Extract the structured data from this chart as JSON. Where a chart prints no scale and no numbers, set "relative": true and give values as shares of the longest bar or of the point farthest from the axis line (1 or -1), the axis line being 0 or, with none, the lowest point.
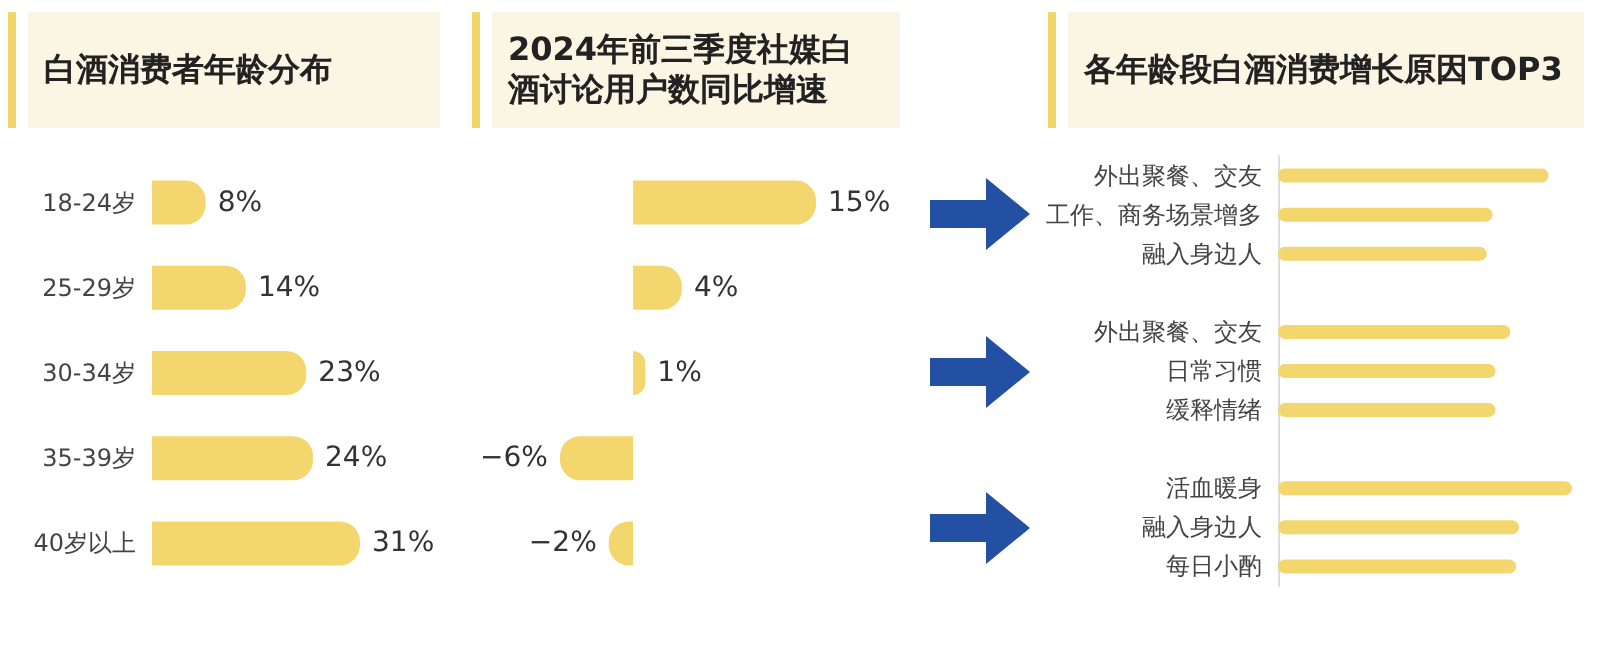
{
  "chart_data": [
    {
      "type": "bar",
      "orientation": "horizontal",
      "title": "白酒消费者年龄分布",
      "categories": [
        "18-24岁",
        "25-29岁",
        "30-34岁",
        "35-39岁",
        "40岁以上"
      ],
      "values": [
        8,
        14,
        23,
        24,
        31
      ],
      "value_labels": [
        "8%",
        "14%",
        "23%",
        "24%",
        "31%"
      ],
      "color": "#f4d66f",
      "tick_labels": "y"
    },
    {
      "type": "bar",
      "orientation": "horizontal",
      "title": "2024年前三季度社媒白酒讨论用户数同比增速",
      "categories": [
        null,
        null,
        null,
        null,
        null
      ],
      "values": [
        15,
        4,
        1,
        -6,
        -2
      ],
      "value_labels": [
        "15%",
        "4%",
        "1%",
        "−6%",
        "−2%"
      ],
      "color": "#f4d66f",
      "tick_labels": false
    },
    {
      "type": "bar",
      "orientation": "horizontal",
      "relative": true,
      "title": "各年龄段白酒消费增长原因TOP3",
      "categories": [
        "外出聚餐、交友",
        "工作、商务场景增多",
        "融入身边人",
        null,
        "外出聚餐、交友",
        "日常习惯",
        "缓释情绪",
        null,
        "活血暖身",
        "融入身边人",
        "每日小酌"
      ],
      "values": [
        0.92,
        0.73,
        0.71,
        null,
        0.79,
        0.74,
        0.74,
        null,
        1,
        0.82,
        0.81
      ],
      "color": "#f4d66f"
    }
  ]
}
